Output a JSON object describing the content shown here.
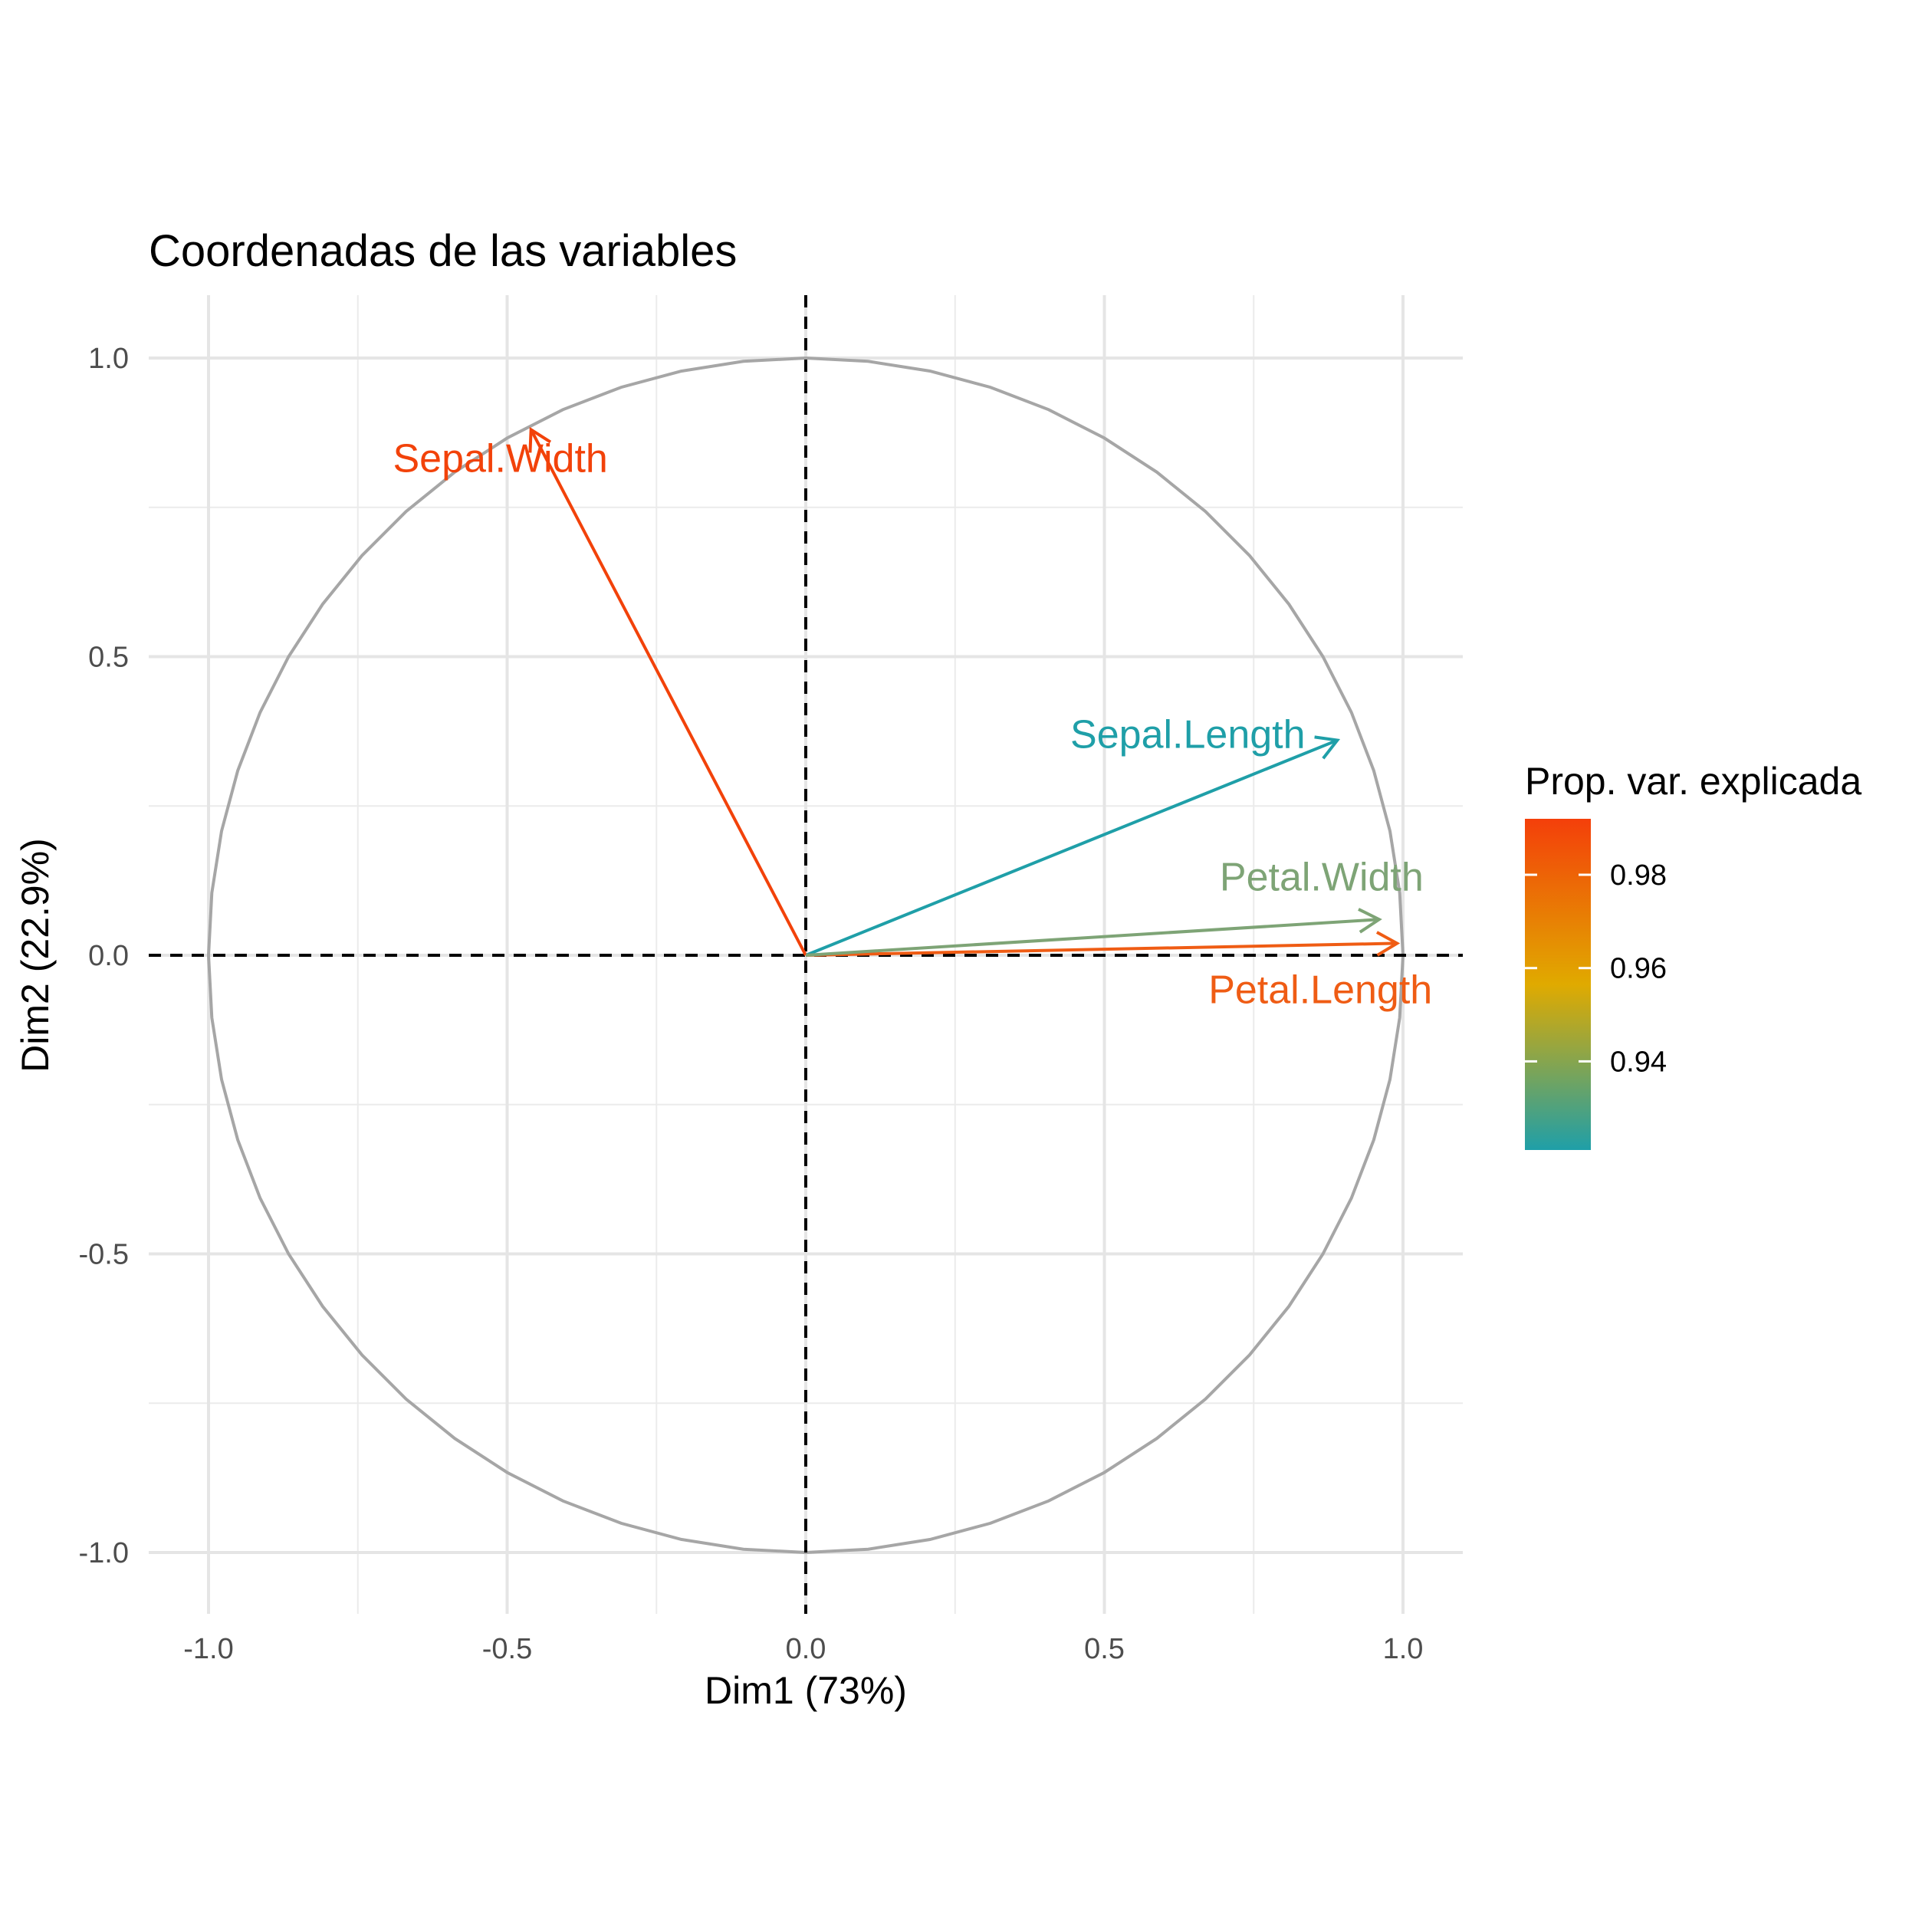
{
  "chart_data": {
    "type": "scatter",
    "subtype": "pca-variable-correlation-circle",
    "title": "Coordenadas de las variables",
    "xlabel": "Dim1 (73%)",
    "ylabel": "Dim2 (22.9%)",
    "xlim": [
      -1.1,
      1.1
    ],
    "ylim": [
      -1.1,
      1.1
    ],
    "x_ticks": [
      -1.0,
      -0.5,
      0.0,
      0.5,
      1.0
    ],
    "y_ticks": [
      -1.0,
      -0.5,
      0.0,
      0.5,
      1.0
    ],
    "x_tick_labels": [
      "-1.0",
      "-0.5",
      "0.0",
      "0.5",
      "1.0"
    ],
    "y_tick_labels": [
      "-1.0",
      "-0.5",
      "0.0",
      "0.5",
      "1.0"
    ],
    "grid": true,
    "unit_circle": true,
    "circle_color": "#A6A6A6",
    "reference_lines": "dashed at x=0 and y=0",
    "variables": [
      {
        "name": "Sepal.Length",
        "x": 0.89,
        "y": 0.36,
        "contrib": 0.928,
        "color": "#1F9FA8"
      },
      {
        "name": "Sepal.Width",
        "x": -0.46,
        "y": 0.88,
        "contrib": 0.991,
        "color": "#F2420A"
      },
      {
        "name": "Petal.Length",
        "x": 0.99,
        "y": 0.02,
        "contrib": 0.984,
        "color": "#EF5C14"
      },
      {
        "name": "Petal.Width",
        "x": 0.96,
        "y": 0.06,
        "contrib": 0.936,
        "color": "#7EA476"
      }
    ],
    "legend": {
      "title": "Prop. var. explicada",
      "position": "right",
      "range": [
        0.921,
        0.992
      ],
      "ticks": [
        0.94,
        0.96,
        0.98
      ],
      "tick_labels": [
        "0.94",
        "0.96",
        "0.98"
      ],
      "gradient": [
        "#1F9FA8",
        "#E0AA00",
        "#F43F0A"
      ]
    }
  }
}
